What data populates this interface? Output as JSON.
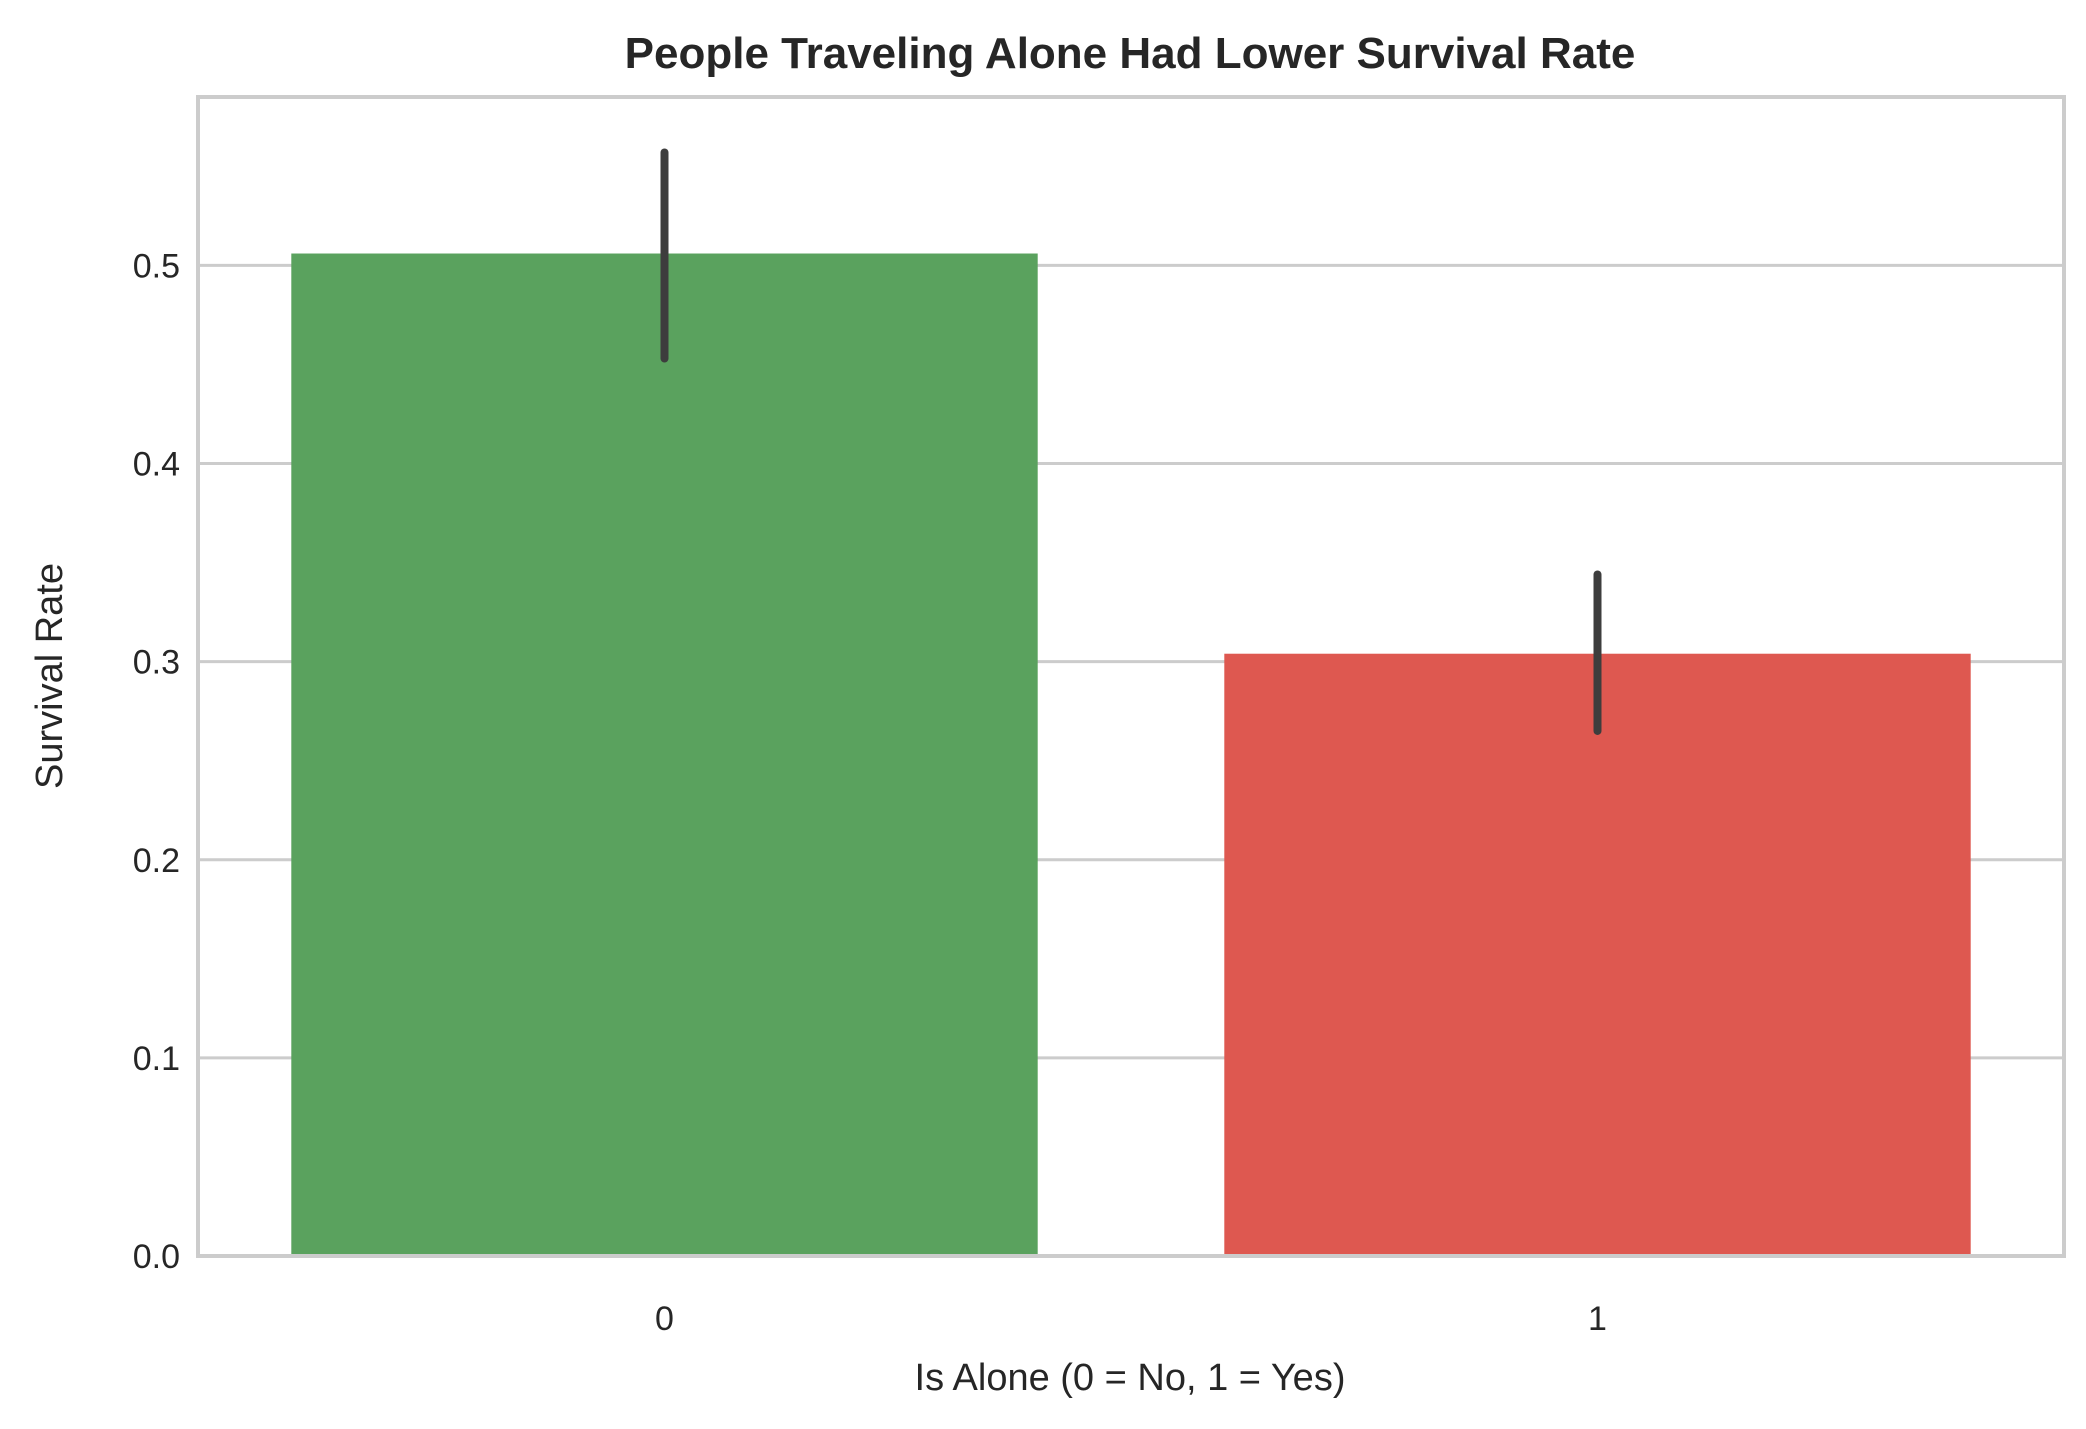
{
  "chart_data": {
    "type": "bar",
    "title": "People Traveling Alone Had Lower Survival Rate",
    "xlabel": "Is Alone (0 = No, 1 = Yes)",
    "ylabel": "Survival Rate",
    "categories": [
      "0",
      "1"
    ],
    "values": [
      0.506,
      0.304
    ],
    "error_bars": [
      [
        0.453,
        0.557
      ],
      [
        0.265,
        0.344
      ]
    ],
    "colors": [
      "#5aa25e",
      "#de5850"
    ],
    "ylim": [
      0,
      0.585
    ],
    "yticks": [
      0.0,
      0.1,
      0.2,
      0.3,
      0.4,
      0.5
    ],
    "ytick_labels": [
      "0.0",
      "0.1",
      "0.2",
      "0.3",
      "0.4",
      "0.5"
    ],
    "grid": true,
    "grid_color": "#cccccc",
    "error_color": "#3d3d3d"
  }
}
